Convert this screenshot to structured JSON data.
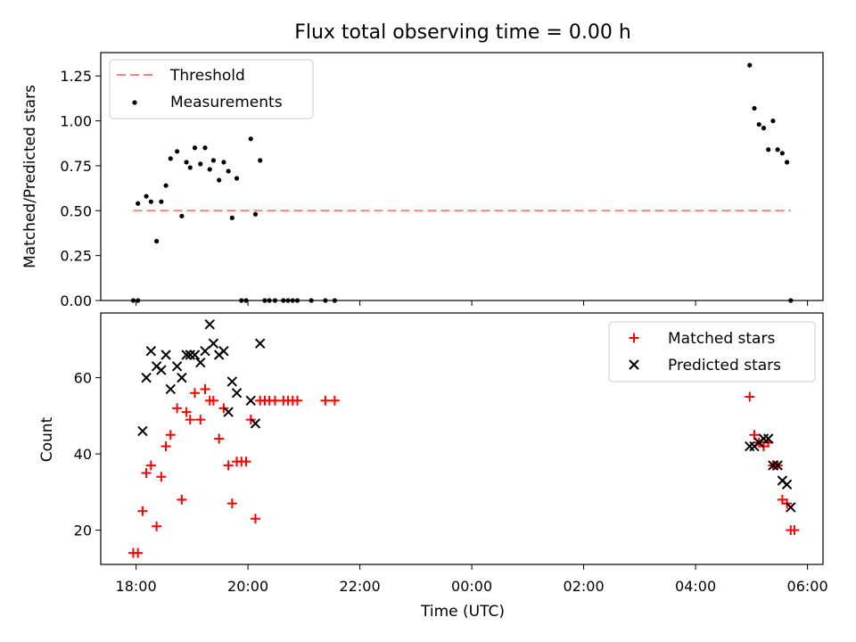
{
  "title": "Flux total observing time = 0.00 h",
  "colors": {
    "threshold": "#ff7f7f",
    "measurement": "#000000",
    "matched": "#ff0000",
    "predicted": "#000000"
  },
  "chart_data": [
    {
      "type": "scatter",
      "xlabel": "",
      "ylabel": "Matched/Predicted stars",
      "ylim": [
        0,
        1.38
      ],
      "yticks": [
        "0.00",
        "0.25",
        "0.50",
        "0.75",
        "1.00",
        "1.25"
      ],
      "legend_position": "top-left",
      "grid": false,
      "threshold": {
        "label": "Threshold",
        "value": 0.5,
        "x_start": "17:57",
        "x_end": "05:42"
      },
      "series": [
        {
          "name": "Measurements",
          "marker": "dot",
          "points": [
            [
              "17:57",
              0.0
            ],
            [
              "18:02",
              0.0
            ],
            [
              "18:02",
              0.54
            ],
            [
              "18:11",
              0.58
            ],
            [
              "18:16",
              0.55
            ],
            [
              "18:22",
              0.33
            ],
            [
              "18:27",
              0.55
            ],
            [
              "18:32",
              0.64
            ],
            [
              "18:37",
              0.79
            ],
            [
              "18:44",
              0.83
            ],
            [
              "18:49",
              0.47
            ],
            [
              "18:54",
              0.77
            ],
            [
              "18:58",
              0.74
            ],
            [
              "19:03",
              0.85
            ],
            [
              "19:09",
              0.76
            ],
            [
              "19:14",
              0.85
            ],
            [
              "19:19",
              0.73
            ],
            [
              "19:23",
              0.78
            ],
            [
              "19:29",
              0.67
            ],
            [
              "19:34",
              0.77
            ],
            [
              "19:39",
              0.72
            ],
            [
              "19:43",
              0.46
            ],
            [
              "19:48",
              0.68
            ],
            [
              "19:53",
              0.0
            ],
            [
              "19:58",
              0.0
            ],
            [
              "20:03",
              0.9
            ],
            [
              "20:08",
              0.48
            ],
            [
              "20:13",
              0.78
            ],
            [
              "20:18",
              0.0
            ],
            [
              "20:23",
              0.0
            ],
            [
              "20:29",
              0.0
            ],
            [
              "20:38",
              0.0
            ],
            [
              "20:43",
              0.0
            ],
            [
              "20:48",
              0.0
            ],
            [
              "20:53",
              0.0
            ],
            [
              "21:08",
              0.0
            ],
            [
              "21:23",
              0.0
            ],
            [
              "21:33",
              0.0
            ],
            [
              "04:58",
              1.31
            ],
            [
              "05:03",
              1.07
            ],
            [
              "05:08",
              0.98
            ],
            [
              "05:13",
              0.96
            ],
            [
              "05:18",
              0.84
            ],
            [
              "05:23",
              1.0
            ],
            [
              "05:28",
              0.84
            ],
            [
              "05:33",
              0.82
            ],
            [
              "05:38",
              0.77
            ],
            [
              "05:42",
              0.0
            ]
          ]
        }
      ]
    },
    {
      "type": "scatter",
      "xlabel": "Time (UTC)",
      "ylabel": "Count",
      "ylim": [
        11,
        77
      ],
      "yticks": [
        "20",
        "40",
        "60"
      ],
      "xticks": [
        "18:00",
        "20:00",
        "22:00",
        "00:00",
        "02:00",
        "04:00",
        "06:00"
      ],
      "legend_position": "top-right",
      "grid": false,
      "series": [
        {
          "name": "Matched stars",
          "marker": "plus",
          "points": [
            [
              "17:57",
              14
            ],
            [
              "18:02",
              14
            ],
            [
              "18:07",
              25
            ],
            [
              "18:11",
              35
            ],
            [
              "18:16",
              37
            ],
            [
              "18:22",
              21
            ],
            [
              "18:27",
              34
            ],
            [
              "18:32",
              42
            ],
            [
              "18:37",
              45
            ],
            [
              "18:44",
              52
            ],
            [
              "18:49",
              28
            ],
            [
              "18:54",
              51
            ],
            [
              "18:58",
              49
            ],
            [
              "19:03",
              56
            ],
            [
              "19:09",
              49
            ],
            [
              "19:14",
              57
            ],
            [
              "19:19",
              54
            ],
            [
              "19:23",
              54
            ],
            [
              "19:29",
              44
            ],
            [
              "19:34",
              52
            ],
            [
              "19:39",
              37
            ],
            [
              "19:43",
              27
            ],
            [
              "19:48",
              38
            ],
            [
              "19:53",
              38
            ],
            [
              "19:58",
              38
            ],
            [
              "20:03",
              49
            ],
            [
              "20:08",
              23
            ],
            [
              "20:13",
              54
            ],
            [
              "20:18",
              54
            ],
            [
              "20:23",
              54
            ],
            [
              "20:29",
              54
            ],
            [
              "20:38",
              54
            ],
            [
              "20:43",
              54
            ],
            [
              "20:48",
              54
            ],
            [
              "20:53",
              54
            ],
            [
              "21:23",
              54
            ],
            [
              "21:33",
              54
            ],
            [
              "04:58",
              55
            ],
            [
              "05:03",
              45
            ],
            [
              "05:08",
              43
            ],
            [
              "05:13",
              42
            ],
            [
              "05:18",
              43
            ],
            [
              "05:23",
              37
            ],
            [
              "05:28",
              37
            ],
            [
              "05:33",
              28
            ],
            [
              "05:38",
              27
            ],
            [
              "05:42",
              20
            ],
            [
              "05:46",
              20
            ]
          ]
        },
        {
          "name": "Predicted stars",
          "marker": "x",
          "points": [
            [
              "18:07",
              46
            ],
            [
              "18:11",
              60
            ],
            [
              "18:16",
              67
            ],
            [
              "18:22",
              63
            ],
            [
              "18:27",
              62
            ],
            [
              "18:32",
              66
            ],
            [
              "18:37",
              57
            ],
            [
              "18:44",
              63
            ],
            [
              "18:49",
              60
            ],
            [
              "18:54",
              66
            ],
            [
              "18:58",
              66
            ],
            [
              "19:03",
              66
            ],
            [
              "19:09",
              64
            ],
            [
              "19:14",
              67
            ],
            [
              "19:19",
              74
            ],
            [
              "19:23",
              69
            ],
            [
              "19:29",
              66
            ],
            [
              "19:34",
              67
            ],
            [
              "19:39",
              51
            ],
            [
              "19:43",
              59
            ],
            [
              "19:48",
              56
            ],
            [
              "20:03",
              54
            ],
            [
              "20:08",
              48
            ],
            [
              "20:13",
              69
            ],
            [
              "04:58",
              42
            ],
            [
              "05:03",
              42
            ],
            [
              "05:08",
              43
            ],
            [
              "05:13",
              44
            ],
            [
              "05:18",
              44
            ],
            [
              "05:23",
              37
            ],
            [
              "05:28",
              37
            ],
            [
              "05:33",
              33
            ],
            [
              "05:38",
              32
            ],
            [
              "05:42",
              26
            ]
          ]
        }
      ]
    }
  ]
}
